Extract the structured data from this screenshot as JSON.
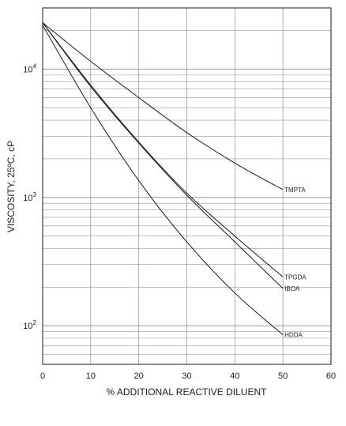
{
  "chart_data": {
    "type": "line",
    "xlabel": "% ADDITIONAL REACTIVE DILUENT",
    "ylabel": "VISCOSITY, 25ºC, cP",
    "xlim": [
      0,
      60
    ],
    "ylim": [
      50,
      30000
    ],
    "yscale": "log",
    "grid": true,
    "x_ticks": [
      0,
      10,
      20,
      30,
      40,
      50,
      60
    ],
    "y_ticks": [
      {
        "value": 100,
        "base": "10",
        "exp": "2"
      },
      {
        "value": 1000,
        "base": "10",
        "exp": "3"
      },
      {
        "value": 10000,
        "base": "10",
        "exp": "4"
      }
    ],
    "series": [
      {
        "name": "TMPTA",
        "x": [
          0,
          10,
          20,
          30,
          40,
          50
        ],
        "y": [
          23000,
          11500,
          6000,
          3200,
          1850,
          1150
        ]
      },
      {
        "name": "TPGDA",
        "x": [
          0,
          10,
          20,
          30,
          40,
          50
        ],
        "y": [
          23000,
          7500,
          2700,
          1080,
          500,
          240
        ]
      },
      {
        "name": "IBOA",
        "x": [
          0,
          10,
          20,
          30,
          40,
          50
        ],
        "y": [
          23000,
          7300,
          2650,
          1040,
          450,
          195
        ]
      },
      {
        "name": "HDDA",
        "x": [
          0,
          10,
          20,
          30,
          40,
          50
        ],
        "y": [
          22000,
          5000,
          1350,
          450,
          180,
          85
        ]
      }
    ],
    "colors": {
      "line": "#1a1a1a",
      "grid": "#9a9a9a",
      "frame": "#1a1a1a"
    }
  }
}
